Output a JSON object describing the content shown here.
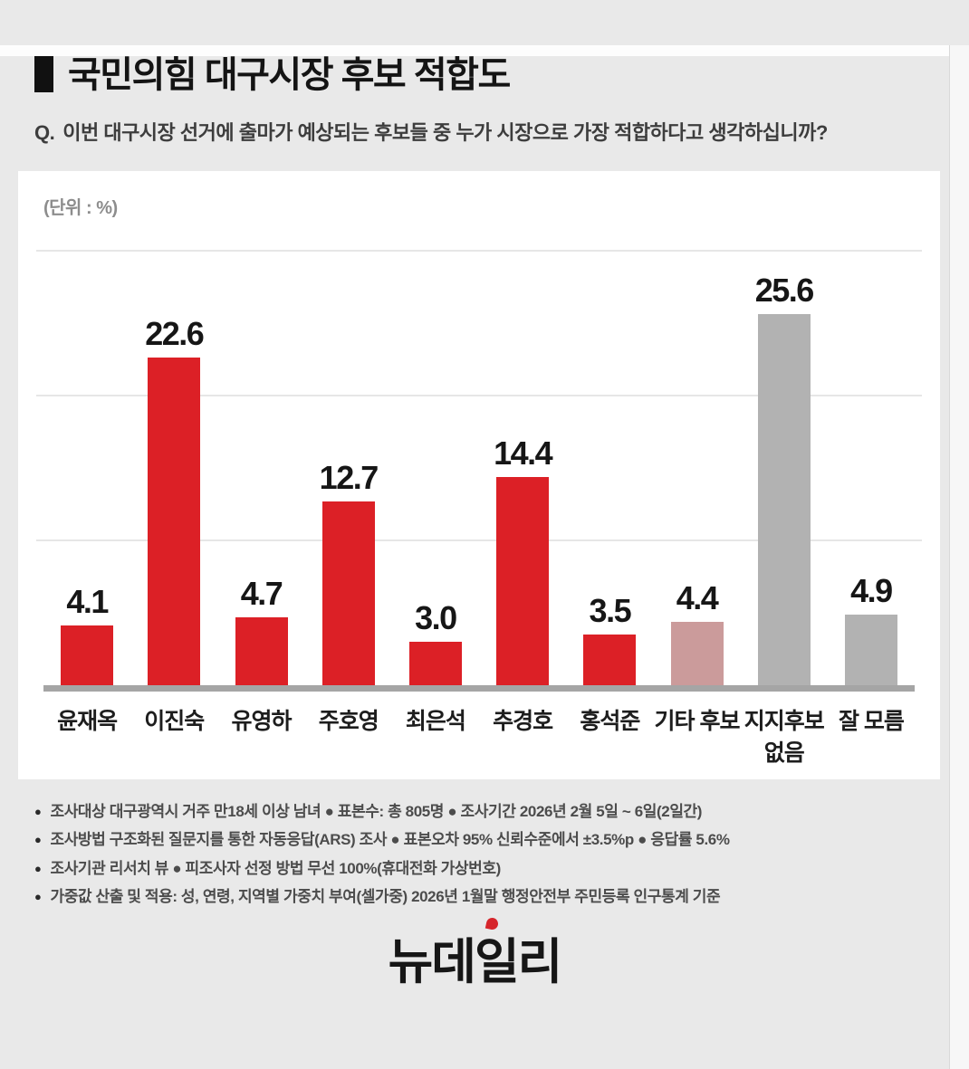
{
  "header": {
    "title": "국민의힘 대구시장 후보 적합도",
    "question_prefix": "Q.",
    "question": "이번 대구시장 선거에 출마가 예상되는 후보들 중 누가 시장으로 가장 적합하다고 생각하십니까?"
  },
  "chart_data": {
    "type": "bar",
    "title": "국민의힘 대구시장 후보 적합도",
    "unit_label": "(단위 : %)",
    "categories": [
      "윤재옥",
      "이진숙",
      "유영하",
      "주호영",
      "최은석",
      "추경호",
      "홍석준",
      "기타 후보",
      "지지후보 없음",
      "잘 모름"
    ],
    "values": [
      4.1,
      22.6,
      4.7,
      12.7,
      3.0,
      14.4,
      3.5,
      4.4,
      25.6,
      4.9
    ],
    "bar_colors": [
      "red",
      "red",
      "red",
      "red",
      "red",
      "red",
      "red",
      "pink",
      "gray",
      "gray"
    ],
    "colors": {
      "red": "#dc2026",
      "pink": "#cb9b9b",
      "gray": "#b2b2b2"
    },
    "xlabel": "",
    "ylabel": "",
    "ylim": [
      0,
      30
    ],
    "gridlines": [
      10,
      20,
      30
    ],
    "grid": true,
    "legend": false,
    "value_labels": true
  },
  "footnotes": {
    "bullet": "●",
    "lines": [
      "조사대상 대구광역시 거주 만18세 이상 남녀 ● 표본수: 총 805명 ● 조사기간 2026년 2월 5일 ~ 6일(2일간)",
      "조사방법 구조화된 질문지를 통한 자동응답(ARS) 조사 ● 표본오차 95% 신뢰수준에서 ±3.5%p ● 응답률 5.6%",
      "조사기관 리서치 뷰 ● 피조사자 선정 방법 무선 100%(휴대전화 가상번호)",
      "가중값 산출 및 적용: 성, 연령, 지역별 가중치 부여(셀가중) 2026년 1월말 행정안전부 주민등록 인구통계 기준"
    ]
  },
  "logo": {
    "text": "뉴데일리"
  }
}
